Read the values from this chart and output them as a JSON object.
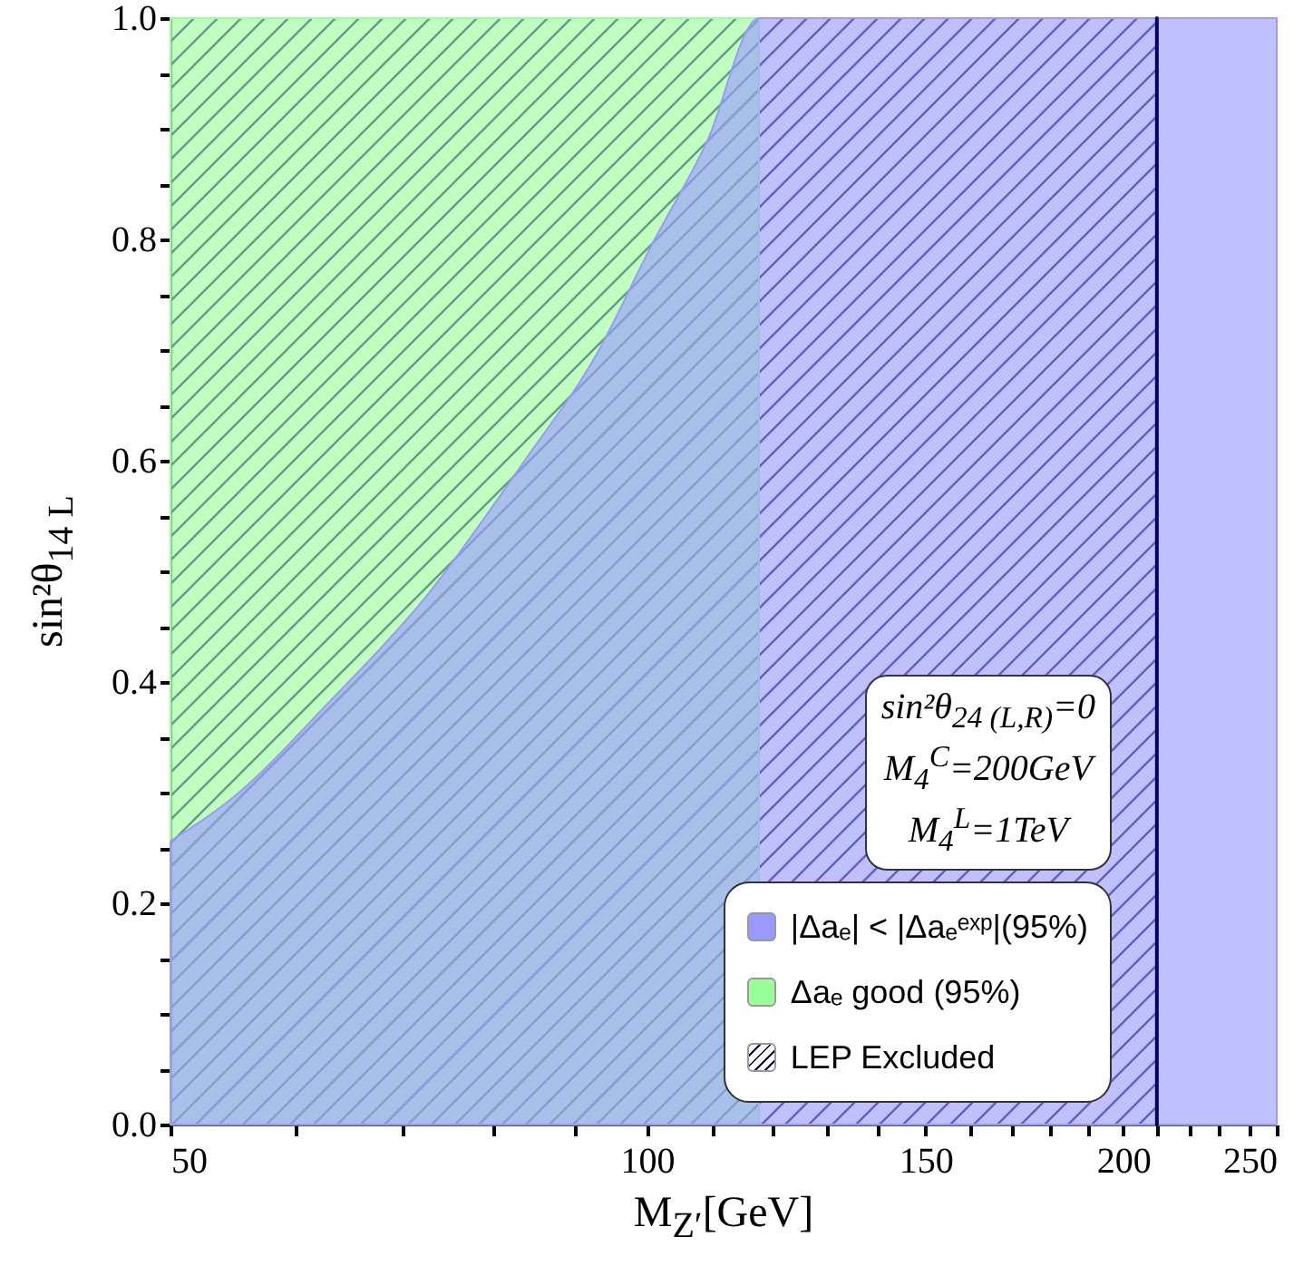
{
  "chart_data": {
    "type": "area",
    "xlabel": "M$_{Z′}$[GeV]",
    "ylabel": "sin²θ$_{14 L}$",
    "log": "x",
    "xlim": [
      50,
      250
    ],
    "ylim": [
      0,
      1
    ],
    "xticks": [
      50,
      {
        "value": 60,
        "label": null
      },
      {
        "value": 70,
        "label": null
      },
      {
        "value": 80,
        "label": null
      },
      {
        "value": 90,
        "label": null
      },
      100,
      {
        "value": 110,
        "label": null
      },
      {
        "value": 120,
        "label": null
      },
      {
        "value": 130,
        "label": null
      },
      {
        "value": 140,
        "label": null
      },
      150,
      {
        "value": 160,
        "label": null
      },
      {
        "value": 170,
        "label": null
      },
      {
        "value": 180,
        "label": null
      },
      {
        "value": 190,
        "label": null
      },
      200,
      {
        "value": 210,
        "label": null
      },
      {
        "value": 220,
        "label": null
      },
      {
        "value": 230,
        "label": null
      },
      {
        "value": 240,
        "label": null
      },
      250
    ],
    "yticks": [
      {
        "value": 0,
        "label": "0.0"
      },
      {
        "value": 0.05,
        "label": null
      },
      {
        "value": 0.1,
        "label": null
      },
      {
        "value": 0.15,
        "label": null
      },
      {
        "value": 0.2,
        "label": "0.2"
      },
      {
        "value": 0.25,
        "label": null
      },
      {
        "value": 0.3,
        "label": null
      },
      {
        "value": 0.35,
        "label": null
      },
      {
        "value": 0.4,
        "label": "0.4"
      },
      {
        "value": 0.45,
        "label": null
      },
      {
        "value": 0.5,
        "label": null
      },
      {
        "value": 0.55,
        "label": null
      },
      {
        "value": 0.6,
        "label": "0.6"
      },
      {
        "value": 0.65,
        "label": null
      },
      {
        "value": 0.7,
        "label": null
      },
      {
        "value": 0.75,
        "label": null
      },
      {
        "value": 0.8,
        "label": "0.8"
      },
      {
        "value": 0.85,
        "label": null
      },
      {
        "value": 0.9,
        "label": null
      },
      {
        "value": 0.95,
        "label": null
      },
      {
        "value": 1,
        "label": "1.0"
      }
    ],
    "series": [
      {
        "name": "|Δaₑ| < |Δaₑᵉˣᵖ|(95%)",
        "color": "#9999ff",
        "x": [
          50,
          54.6,
          62.9,
          72.5,
          83.6,
          93.0,
          100.7,
          109.1,
          117.7,
          250
        ],
        "values": [
          0.256,
          0.294,
          0.381,
          0.477,
          0.599,
          0.697,
          0.795,
          0.888,
          1.0,
          1.0
        ]
      },
      {
        "name": "Δaₑ good (95%)",
        "color": "#99ff99",
        "x": [
          50,
          117.7
        ],
        "values": [
          1,
          1
        ]
      }
    ],
    "bands": [
      {
        "axis": "x",
        "from": 50,
        "to": 210,
        "label": "LEP Excluded",
        "color": "#000066"
      }
    ],
    "ref_lines": [
      {
        "axis": "x",
        "value": 210,
        "color": "#000066"
      }
    ],
    "annotations": [
      "sin²θ$_{24 (L,R)}$=0",
      "M$_{4}$$^{C}$=200GeV",
      "M$_{4}$$^{L}$=1TeV"
    ],
    "legend": "bottom right",
    "grid": false
  }
}
